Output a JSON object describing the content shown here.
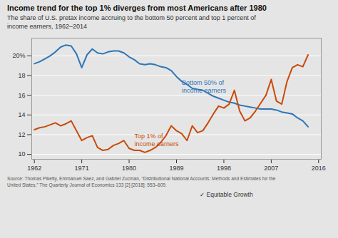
{
  "chart_data": {
    "type": "line",
    "title": "Income trend for the top 1% diverges from most Americans after 1980",
    "subtitle": "The share of U.S. pretax income accruing to the bottom 50 percent and top 1 percent of\nincome earners, 1962–2014",
    "caption": "Source: Thomas Piketty, Emmanuel Saez, and Gabriel Zucman, “Distributional National Accounts: Methods and Estimates for the\nUnited States,” The Quarterly Journal of Economics 133 [2] [2018]: 553–609.",
    "logo": "✓ Equitable Growth",
    "x": [
      1962,
      1963,
      1964,
      1965,
      1966,
      1967,
      1968,
      1969,
      1970,
      1971,
      1972,
      1973,
      1974,
      1975,
      1976,
      1977,
      1978,
      1979,
      1980,
      1981,
      1982,
      1983,
      1984,
      1985,
      1986,
      1987,
      1988,
      1989,
      1990,
      1991,
      1992,
      1993,
      1994,
      1995,
      1996,
      1997,
      1998,
      1999,
      2000,
      2001,
      2002,
      2003,
      2004,
      2005,
      2006,
      2007,
      2008,
      2009,
      2010,
      2011,
      2012,
      2013,
      2014
    ],
    "series": [
      {
        "color": "#2e75b6",
        "values": [
          19.2,
          19.4,
          19.7,
          20.0,
          20.4,
          20.9,
          21.1,
          21.0,
          20.2,
          18.8,
          20.1,
          20.7,
          20.3,
          20.2,
          20.4,
          20.5,
          20.5,
          20.3,
          19.9,
          19.6,
          19.2,
          19.1,
          19.2,
          19.1,
          18.9,
          18.8,
          18.5,
          17.9,
          17.4,
          17.1,
          16.7,
          16.6,
          16.5,
          16.2,
          15.9,
          15.7,
          15.5,
          15.3,
          15.2,
          15.0,
          14.9,
          14.8,
          14.7,
          14.6,
          14.6,
          14.6,
          14.5,
          14.3,
          14.2,
          14.1,
          13.7,
          13.4,
          12.8
        ]
      },
      {
        "color": "#c84b0a",
        "values": [
          12.5,
          12.7,
          12.8,
          13.0,
          13.2,
          12.9,
          13.1,
          13.4,
          12.4,
          11.4,
          11.7,
          11.9,
          10.7,
          10.4,
          10.5,
          10.9,
          11.1,
          11.4,
          10.6,
          10.4,
          10.4,
          10.2,
          10.4,
          10.7,
          11.2,
          11.9,
          12.9,
          12.4,
          12.1,
          11.4,
          12.9,
          12.2,
          12.4,
          13.2,
          14.1,
          14.9,
          14.7,
          15.1,
          16.5,
          14.4,
          13.4,
          13.7,
          14.4,
          15.2,
          16.0,
          17.6,
          15.4,
          15.1,
          17.4,
          18.8,
          19.1,
          18.9,
          20.1
        ]
      }
    ],
    "annotations": [
      {
        "text": "Bottom 50% of\nincome earners",
        "x": 1990,
        "y": 17.6,
        "color": "#2e75b6"
      },
      {
        "text": "Top 1% of\nincome earners",
        "x": 1981,
        "y": 12.2,
        "color": "#c84b0a"
      }
    ],
    "xlim": [
      1961.5,
      2016.5
    ],
    "xticks": [
      1962,
      1971,
      1980,
      1989,
      1998,
      2007,
      2016
    ],
    "ylim": [
      9.5,
      21.8
    ],
    "yticks": [
      10,
      12,
      14,
      16,
      18,
      {
        "value": 20,
        "label": "20%"
      }
    ],
    "grid": true
  }
}
